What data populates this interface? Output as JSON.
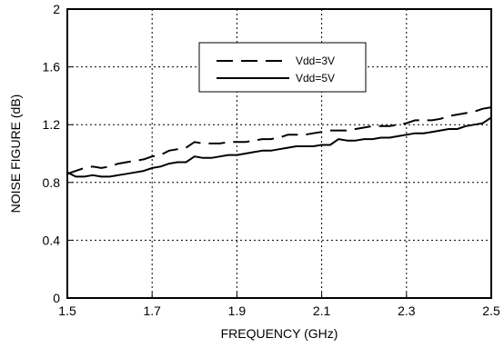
{
  "chart_data": {
    "type": "line",
    "title": "",
    "xlabel": "FREQUENCY (GHz)",
    "ylabel": "NOISE FIGURE (dB)",
    "xlim": [
      1.5,
      2.5
    ],
    "ylim": [
      0,
      2
    ],
    "x_ticks": [
      "1.5",
      "1.7",
      "1.9",
      "2.1",
      "2.3",
      "2.5"
    ],
    "y_ticks": [
      "0",
      "0.4",
      "0.8",
      "1.2",
      "1.6",
      "2"
    ],
    "grid": true,
    "legend_position": "top-center",
    "series": [
      {
        "name": "Vdd=3V",
        "style": "dashed",
        "color": "#000000",
        "x": [
          1.5,
          1.52,
          1.54,
          1.56,
          1.58,
          1.6,
          1.62,
          1.64,
          1.66,
          1.68,
          1.7,
          1.72,
          1.74,
          1.76,
          1.78,
          1.8,
          1.82,
          1.84,
          1.86,
          1.88,
          1.9,
          1.92,
          1.94,
          1.96,
          1.98,
          2.0,
          2.02,
          2.04,
          2.06,
          2.08,
          2.1,
          2.12,
          2.14,
          2.16,
          2.18,
          2.2,
          2.22,
          2.24,
          2.26,
          2.28,
          2.3,
          2.32,
          2.34,
          2.36,
          2.38,
          2.4,
          2.42,
          2.44,
          2.46,
          2.48,
          2.5
        ],
        "y": [
          0.86,
          0.88,
          0.9,
          0.91,
          0.9,
          0.91,
          0.93,
          0.94,
          0.95,
          0.96,
          0.98,
          0.99,
          1.02,
          1.03,
          1.04,
          1.08,
          1.07,
          1.07,
          1.07,
          1.08,
          1.08,
          1.08,
          1.09,
          1.1,
          1.1,
          1.11,
          1.13,
          1.13,
          1.13,
          1.14,
          1.15,
          1.16,
          1.16,
          1.16,
          1.17,
          1.18,
          1.19,
          1.19,
          1.19,
          1.2,
          1.21,
          1.23,
          1.23,
          1.23,
          1.24,
          1.26,
          1.27,
          1.28,
          1.29,
          1.31,
          1.32
        ]
      },
      {
        "name": "Vdd=5V",
        "style": "solid",
        "color": "#000000",
        "x": [
          1.5,
          1.52,
          1.54,
          1.56,
          1.58,
          1.6,
          1.62,
          1.64,
          1.66,
          1.68,
          1.7,
          1.72,
          1.74,
          1.76,
          1.78,
          1.8,
          1.82,
          1.84,
          1.86,
          1.88,
          1.9,
          1.92,
          1.94,
          1.96,
          1.98,
          2.0,
          2.02,
          2.04,
          2.06,
          2.08,
          2.1,
          2.12,
          2.14,
          2.16,
          2.18,
          2.2,
          2.22,
          2.24,
          2.26,
          2.28,
          2.3,
          2.32,
          2.34,
          2.36,
          2.38,
          2.4,
          2.42,
          2.44,
          2.46,
          2.48,
          2.5
        ],
        "y": [
          0.87,
          0.84,
          0.84,
          0.85,
          0.84,
          0.84,
          0.85,
          0.86,
          0.87,
          0.88,
          0.9,
          0.91,
          0.93,
          0.94,
          0.94,
          0.98,
          0.97,
          0.97,
          0.98,
          0.99,
          0.99,
          1.0,
          1.01,
          1.02,
          1.02,
          1.03,
          1.04,
          1.05,
          1.05,
          1.05,
          1.06,
          1.06,
          1.1,
          1.09,
          1.09,
          1.1,
          1.1,
          1.11,
          1.11,
          1.12,
          1.13,
          1.14,
          1.14,
          1.15,
          1.16,
          1.17,
          1.17,
          1.19,
          1.2,
          1.21,
          1.25
        ]
      }
    ]
  }
}
